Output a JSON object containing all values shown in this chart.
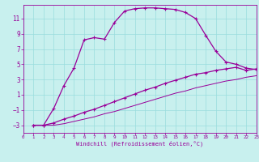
{
  "xlabel": "Windchill (Refroidissement éolien,°C)",
  "bg_color": "#c8f0ee",
  "line_color": "#990099",
  "grid_color": "#99dddd",
  "x_ticks": [
    0,
    1,
    2,
    3,
    4,
    5,
    6,
    7,
    8,
    9,
    10,
    11,
    12,
    13,
    14,
    15,
    16,
    17,
    18,
    19,
    20,
    21,
    22,
    23
  ],
  "y_ticks": [
    -3,
    -1,
    1,
    3,
    5,
    7,
    9,
    11
  ],
  "xlim": [
    0,
    23
  ],
  "ylim": [
    -4.0,
    12.8
  ],
  "line1_x": [
    1,
    2,
    3,
    4,
    5,
    6,
    7,
    8,
    9,
    10,
    11,
    12,
    13,
    14,
    15,
    16,
    17,
    18,
    19,
    20,
    21,
    22,
    23
  ],
  "line1_y": [
    -3,
    -3,
    -0.8,
    2.2,
    4.5,
    8.2,
    8.5,
    8.3,
    10.5,
    12.0,
    12.3,
    12.4,
    12.4,
    12.3,
    12.2,
    11.8,
    11.0,
    8.8,
    6.7,
    5.3,
    5.0,
    4.5,
    4.3
  ],
  "line2_x": [
    1,
    2,
    3,
    4,
    5,
    6,
    7,
    8,
    9,
    10,
    11,
    12,
    13,
    14,
    15,
    16,
    17,
    18,
    19,
    20,
    21,
    22,
    23
  ],
  "line2_y": [
    -3,
    -3,
    -2.7,
    -2.2,
    -1.8,
    -1.3,
    -0.9,
    -0.4,
    0.1,
    0.6,
    1.1,
    1.6,
    2.0,
    2.5,
    2.9,
    3.3,
    3.7,
    3.9,
    4.2,
    4.4,
    4.6,
    4.2,
    4.4
  ],
  "line3_x": [
    1,
    2,
    3,
    4,
    5,
    6,
    7,
    8,
    9,
    10,
    11,
    12,
    13,
    14,
    15,
    16,
    17,
    18,
    19,
    20,
    21,
    22,
    23
  ],
  "line3_y": [
    -3,
    -3,
    -3.0,
    -2.8,
    -2.5,
    -2.2,
    -1.9,
    -1.5,
    -1.2,
    -0.8,
    -0.4,
    0.0,
    0.4,
    0.8,
    1.2,
    1.5,
    1.9,
    2.2,
    2.5,
    2.8,
    3.0,
    3.3,
    3.5
  ],
  "xlabel_fontsize": 5.0,
  "ytick_fontsize": 5.5,
  "xtick_fontsize": 4.2
}
